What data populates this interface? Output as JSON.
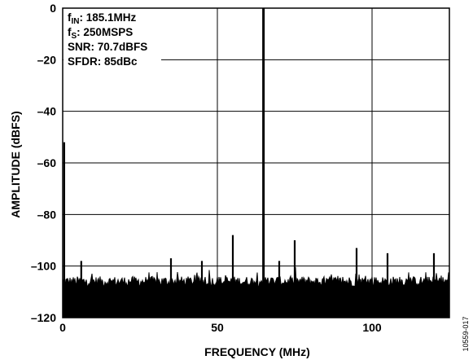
{
  "chart_data": {
    "type": "line",
    "xlabel": "FREQUENCY (MHz)",
    "ylabel": "AMPLITUDE (dBFS)",
    "xlim": [
      0,
      125
    ],
    "ylim": [
      -120,
      0
    ],
    "x_ticks": [
      0,
      50,
      100
    ],
    "y_ticks": [
      0,
      -20,
      -40,
      -60,
      -80,
      -100,
      -120
    ],
    "x_tick_labels": [
      "0",
      "50",
      "100"
    ],
    "y_tick_labels": [
      "0",
      "–20",
      "–40",
      "–60",
      "–80",
      "–100",
      "–120"
    ],
    "grid": true,
    "noise_floor_dbfs": -106,
    "annotations": [
      {
        "lead": "f",
        "sub": "IN",
        "text": ": 185.1MHz"
      },
      {
        "lead": "f",
        "sub": "S",
        "text": ": 250MSPS"
      },
      {
        "lead": "",
        "sub": "",
        "text": "SNR: 70.7dBFS"
      },
      {
        "lead": "",
        "sub": "",
        "text": "SFDR: 85dBc"
      }
    ],
    "peaks": [
      {
        "x": 0.5,
        "y": -52
      },
      {
        "x": 6.0,
        "y": -98
      },
      {
        "x": 35.0,
        "y": -97
      },
      {
        "x": 45.0,
        "y": -98
      },
      {
        "x": 55.0,
        "y": -88
      },
      {
        "x": 64.9,
        "y": 0
      },
      {
        "x": 70.0,
        "y": -98
      },
      {
        "x": 75.0,
        "y": -90
      },
      {
        "x": 95.0,
        "y": -93
      },
      {
        "x": 105.0,
        "y": -95
      },
      {
        "x": 120.0,
        "y": -95
      }
    ]
  },
  "figure_id": "10559-017"
}
